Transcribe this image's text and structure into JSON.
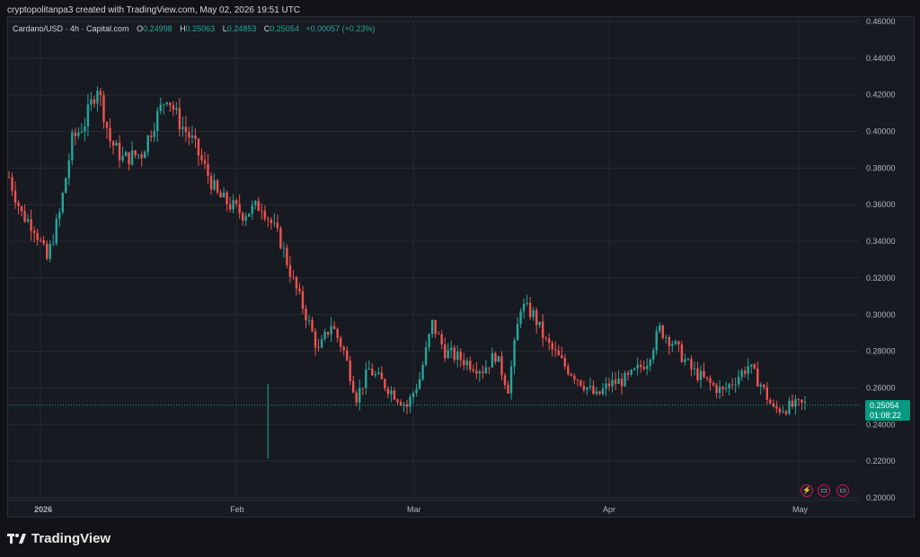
{
  "header": {
    "created_text": "cryptopolitanpa3 created with TradingView.com, May 02, 2026 19:51 UTC"
  },
  "legend": {
    "symbol": "Cardano/USD · 4h · Capital.com",
    "o_key": "O",
    "o_val": "0.24998",
    "h_key": "H",
    "h_val": "0.25063",
    "l_key": "L",
    "l_val": "0.24853",
    "c_key": "C",
    "c_val": "0.25054",
    "change": "+0.00057 (+0.23%)"
  },
  "price_badge": {
    "price": "0.25054",
    "countdown": "01:08:22"
  },
  "footer": {
    "brand": "TradingView"
  },
  "icons": [
    {
      "name": "lightning-event-icon",
      "glyph": "⚡"
    },
    {
      "name": "us-flag-event-icon",
      "glyph": "▭"
    },
    {
      "name": "us-flag-event-icon-2",
      "glyph": "▭"
    }
  ],
  "colors": {
    "up": "#26a69a",
    "down": "#ef5350",
    "grid": "#262a34",
    "text": "#b2b5be",
    "price_line": "#26a69a",
    "badge": "#089981"
  },
  "chart_data": {
    "type": "candlestick",
    "title": "Cardano/USD · 4h · Capital.com",
    "x_tick_labels": [
      "2026",
      "Feb",
      "Mar",
      "Apr",
      "May"
    ],
    "y_tick_labels": [
      "0.46000",
      "0.44000",
      "0.42000",
      "0.40000",
      "0.38000",
      "0.36000",
      "0.34000",
      "0.32000",
      "0.30000",
      "0.28000",
      "0.26000",
      "0.24000",
      "0.22000",
      "0.20000"
    ],
    "ylim": [
      0.2,
      0.46
    ],
    "x_range_days": [
      -5,
      121
    ],
    "last_price": 0.25054,
    "grid": true,
    "path_points": [
      [
        -5,
        0.375
      ],
      [
        -3,
        0.355
      ],
      [
        -1,
        0.348
      ],
      [
        1,
        0.33
      ],
      [
        3,
        0.355
      ],
      [
        5,
        0.395
      ],
      [
        7,
        0.405
      ],
      [
        9,
        0.425
      ],
      [
        11,
        0.395
      ],
      [
        13,
        0.385
      ],
      [
        16,
        0.388
      ],
      [
        18,
        0.405
      ],
      [
        20,
        0.42
      ],
      [
        22,
        0.405
      ],
      [
        24,
        0.395
      ],
      [
        26,
        0.38
      ],
      [
        28,
        0.365
      ],
      [
        30,
        0.36
      ],
      [
        32,
        0.355
      ],
      [
        35,
        0.36
      ],
      [
        38,
        0.34
      ],
      [
        40,
        0.318
      ],
      [
        42,
        0.3
      ],
      [
        44,
        0.28
      ],
      [
        46,
        0.295
      ],
      [
        48,
        0.28
      ],
      [
        50,
        0.255
      ],
      [
        52,
        0.27
      ],
      [
        55,
        0.26
      ],
      [
        58,
        0.25
      ],
      [
        60,
        0.265
      ],
      [
        62,
        0.295
      ],
      [
        64,
        0.28
      ],
      [
        67,
        0.275
      ],
      [
        70,
        0.27
      ],
      [
        72,
        0.278
      ],
      [
        74,
        0.26
      ],
      [
        76,
        0.305
      ],
      [
        78,
        0.3
      ],
      [
        80,
        0.285
      ],
      [
        83,
        0.272
      ],
      [
        86,
        0.262
      ],
      [
        88,
        0.255
      ],
      [
        90,
        0.262
      ],
      [
        93,
        0.265
      ],
      [
        96,
        0.275
      ],
      [
        98,
        0.292
      ],
      [
        100,
        0.285
      ],
      [
        103,
        0.27
      ],
      [
        106,
        0.262
      ],
      [
        108,
        0.258
      ],
      [
        110,
        0.265
      ],
      [
        112,
        0.272
      ],
      [
        114,
        0.262
      ],
      [
        116,
        0.248
      ],
      [
        119,
        0.25
      ],
      [
        121,
        0.251
      ]
    ]
  }
}
